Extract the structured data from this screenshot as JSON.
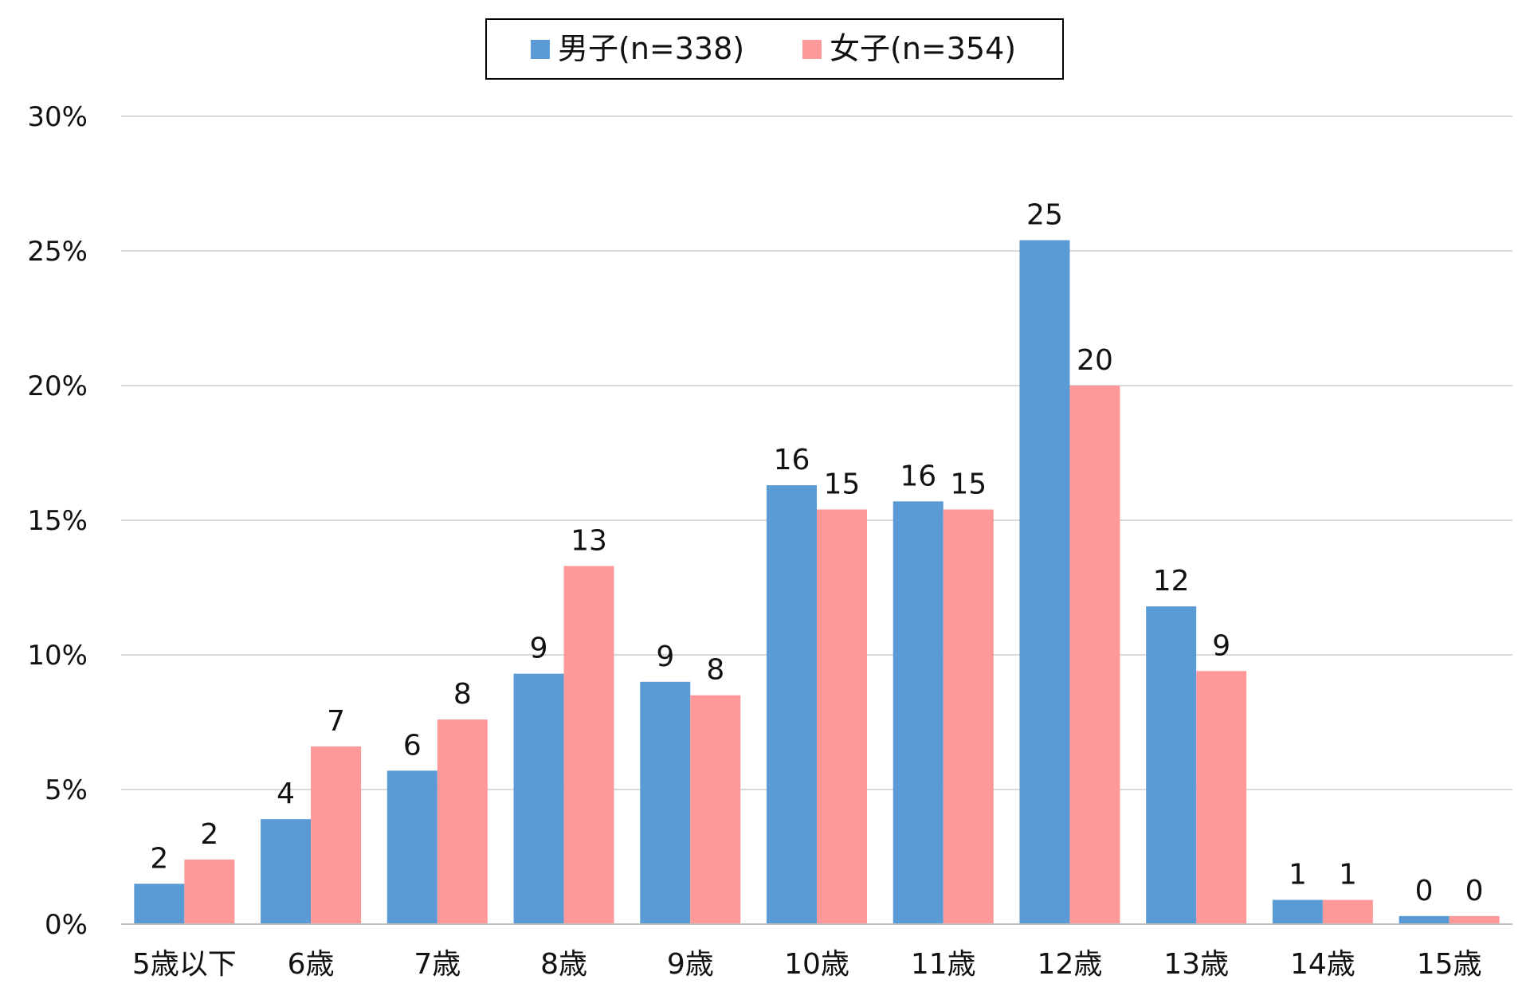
{
  "chart_data": {
    "type": "bar",
    "categories": [
      "5歳以下",
      "6歳",
      "7歳",
      "8歳",
      "9歳",
      "10歳",
      "11歳",
      "12歳",
      "13歳",
      "14歳",
      "15歳"
    ],
    "series": [
      {
        "name": "男子(n=338)",
        "color": "#5b9bd5",
        "values": [
          1.5,
          3.9,
          5.7,
          9.3,
          9.0,
          16.3,
          15.7,
          25.4,
          11.8,
          0.9,
          0.3
        ],
        "labels": [
          "2",
          "4",
          "6",
          "9",
          "9",
          "16",
          "16",
          "25",
          "12",
          "1",
          "0"
        ]
      },
      {
        "name": "女子(n=354)",
        "color": "#ff9999",
        "values": [
          2.4,
          6.6,
          7.6,
          13.3,
          8.5,
          15.4,
          15.4,
          20.0,
          9.4,
          0.9,
          0.3
        ],
        "labels": [
          "2",
          "7",
          "8",
          "13",
          "8",
          "15",
          "15",
          "20",
          "9",
          "1",
          "0"
        ]
      }
    ],
    "ylim": [
      0,
      30
    ],
    "yticks": [
      "0%",
      "5%",
      "10%",
      "15%",
      "20%",
      "25%",
      "30%"
    ],
    "grid": true,
    "legend_position": "top-center"
  }
}
